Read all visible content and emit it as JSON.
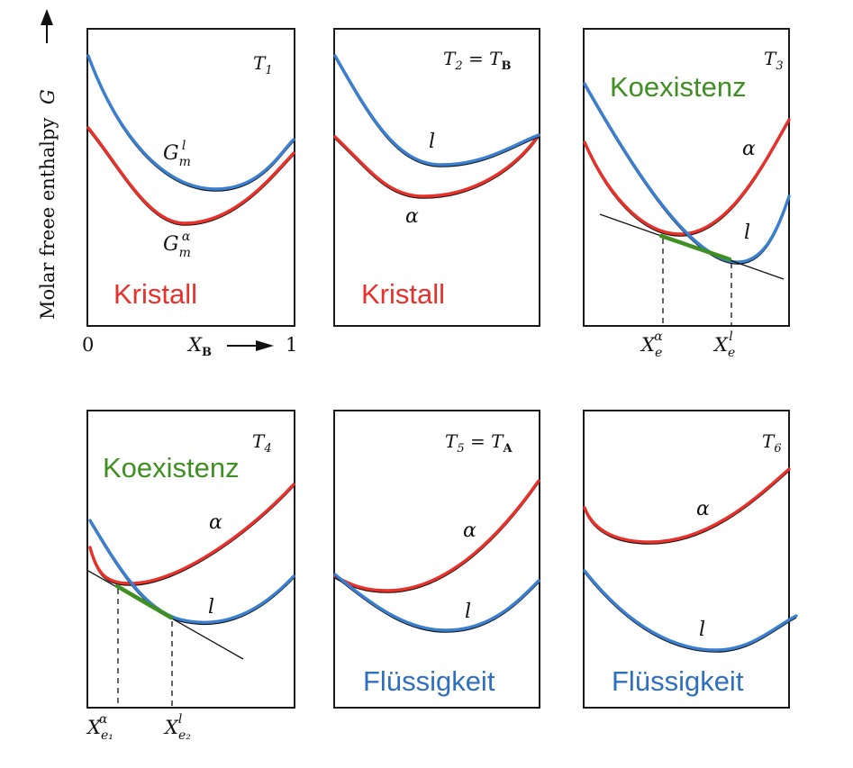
{
  "y_axis_label": "Molar freee enthalpy",
  "y_axis_symbol": "G",
  "x_axis_symbol": "X",
  "x_axis_subscript": "B",
  "x_tick_min": "0",
  "x_tick_max": "1",
  "panels": [
    {
      "temp": "T",
      "temp_sub": "1",
      "temp_suffix": "",
      "temp_suffix_sub": "",
      "phase_word": "Kristall",
      "label_liquid": "G",
      "label_liquid_sub": "m",
      "label_liquid_sup": "l",
      "label_alpha": "G",
      "label_alpha_sub": "m",
      "label_alpha_sup": "α"
    },
    {
      "temp": "T",
      "temp_sub": "2",
      "temp_suffix": " = T",
      "temp_suffix_sub": "B",
      "phase_word": "Kristall",
      "label_liquid": "l",
      "label_alpha": "α"
    },
    {
      "temp": "T",
      "temp_sub": "3",
      "temp_suffix": "",
      "temp_suffix_sub": "",
      "phase_word": "Koexistenz",
      "label_liquid": "l",
      "label_alpha": "α",
      "xe_left": "X",
      "xe_left_sub": "e",
      "xe_left_sup": "α",
      "xe_right": "X",
      "xe_right_sub": "e",
      "xe_right_sup": "l"
    },
    {
      "temp": "T",
      "temp_sub": "4",
      "temp_suffix": "",
      "temp_suffix_sub": "",
      "phase_word": "Koexistenz",
      "label_liquid": "l",
      "label_alpha": "α",
      "xe_left": "X",
      "xe_left_sub": "e₁",
      "xe_left_sup": "α",
      "xe_right": "X",
      "xe_right_sub": "e₂",
      "xe_right_sup": "l"
    },
    {
      "temp": "T",
      "temp_sub": "5",
      "temp_suffix": " = T",
      "temp_suffix_sub": "A",
      "phase_word": "Flüssigkeit",
      "label_liquid": "l",
      "label_alpha": "α"
    },
    {
      "temp": "T",
      "temp_sub": "6",
      "temp_suffix": "",
      "temp_suffix_sub": "",
      "phase_word": "Flüssigkeit",
      "label_liquid": "l",
      "label_alpha": "α"
    }
  ],
  "colors": {
    "solid_alpha": "#e8312a",
    "liquid": "#3a7fd0",
    "coexistence": "#3f8f23"
  }
}
